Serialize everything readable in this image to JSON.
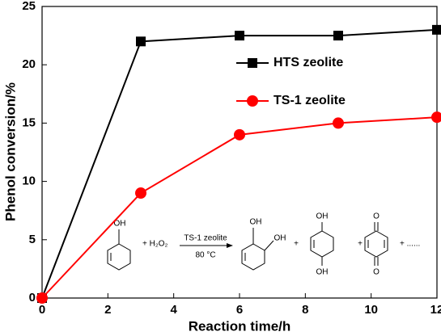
{
  "chart_data": {
    "type": "line",
    "x_label": "Reaction time/h",
    "y_label": "Phenol conversion/%",
    "x": [
      0,
      3,
      6,
      9,
      12
    ],
    "series": [
      {
        "name": "HTS zeolite",
        "color": "#000000",
        "marker": "square",
        "values": [
          0,
          22,
          22.5,
          22.5,
          23
        ]
      },
      {
        "name": "TS-1 zeolite",
        "color": "#ff0000",
        "marker": "circle",
        "values": [
          0,
          9,
          14,
          15,
          15.5
        ]
      }
    ],
    "xlim": [
      0,
      12
    ],
    "xticks": [
      0,
      2,
      4,
      6,
      8,
      10,
      12
    ],
    "ylim": [
      0,
      25
    ],
    "yticks": [
      0,
      5,
      10,
      15,
      20,
      25
    ],
    "grid": false,
    "scheme": [
      "OH",
      "+ H₂O₂",
      "TS-1 zeolite",
      "80 °C",
      "OH",
      "OH",
      "+",
      "OH",
      "OH",
      "+",
      "O",
      "O",
      "+ ......"
    ]
  }
}
